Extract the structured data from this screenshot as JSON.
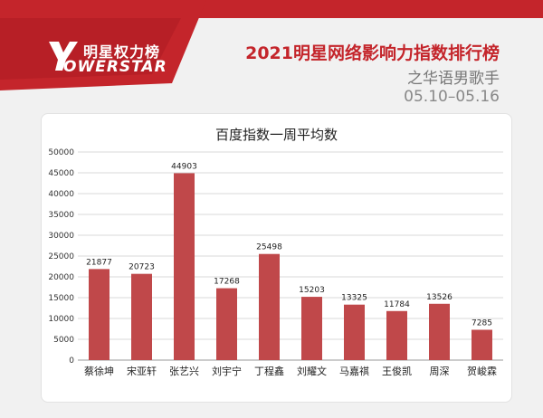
{
  "header": {
    "logo_cn": "明星权力榜",
    "logo_en": "OWERSTAR",
    "title": "2021明星网络影响力指数排行榜",
    "subtitle": "之华语男歌手",
    "date_range": "05.10–05.16"
  },
  "colors": {
    "brand_red": "#c4252b",
    "bar": "#c0484a",
    "grid": "#d9d9d9"
  },
  "chart_data": {
    "type": "bar",
    "title": "百度指数一周平均数",
    "categories": [
      "蔡徐坤",
      "宋亚轩",
      "张艺兴",
      "刘宇宁",
      "丁程鑫",
      "刘耀文",
      "马嘉祺",
      "王俊凯",
      "周深",
      "贺峻霖"
    ],
    "values": [
      21877,
      20723,
      44903,
      17268,
      25498,
      15203,
      13325,
      11784,
      13526,
      7285
    ],
    "ylim": [
      0,
      50000
    ],
    "yticks": [
      0,
      5000,
      10000,
      15000,
      20000,
      25000,
      30000,
      35000,
      40000,
      45000,
      50000
    ],
    "grid": true,
    "data_labels": true
  }
}
